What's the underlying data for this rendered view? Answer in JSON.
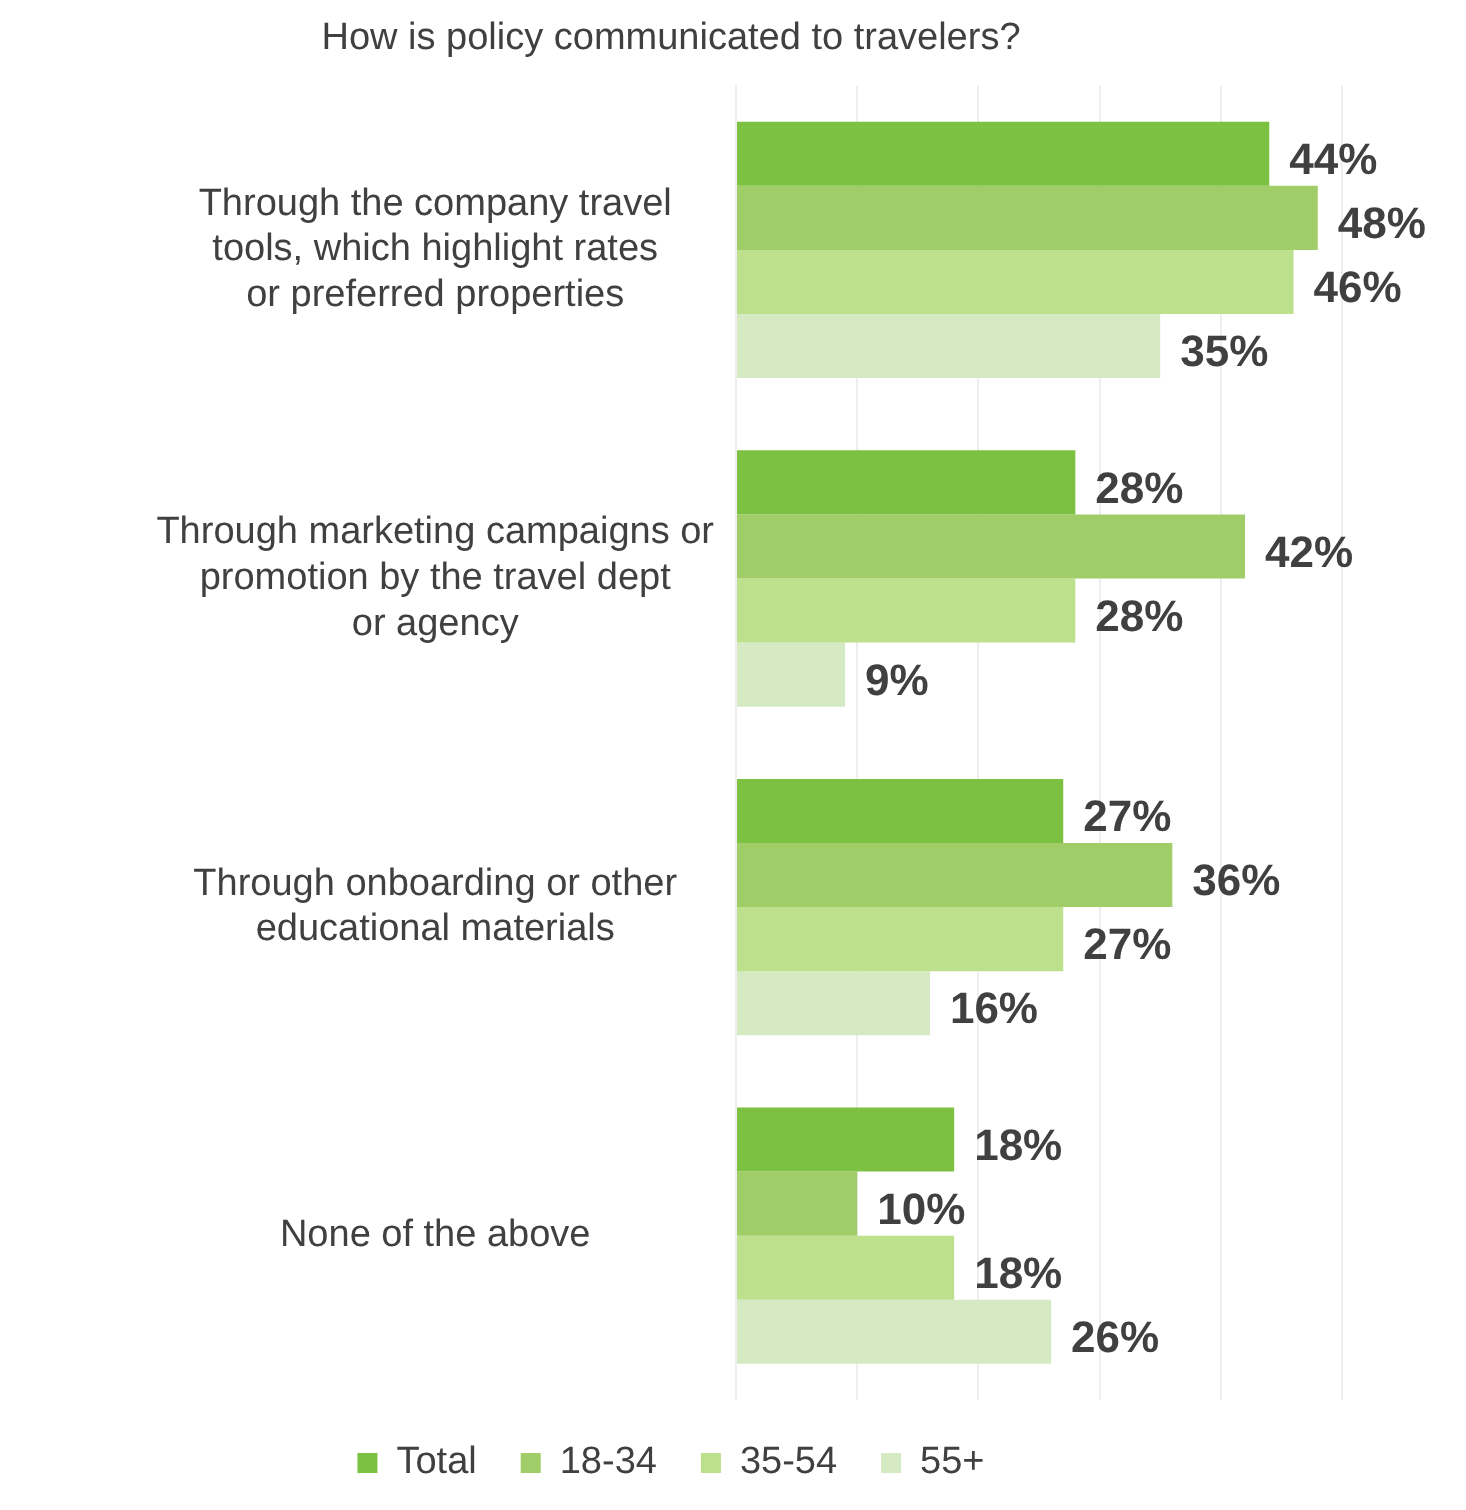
{
  "chart_data": {
    "type": "bar",
    "orientation": "horizontal",
    "title": "How is policy communicated to travelers?",
    "categories": [
      "Through the company travel tools, which highlight rates or preferred properties",
      "Through marketing campaigns or promotion by the travel dept or agency",
      "Through onboarding or other educational materials",
      "None of the above"
    ],
    "series": [
      {
        "name": "Total",
        "color": "#7cc142",
        "values": [
          44,
          28,
          27,
          18
        ],
        "value_labels": [
          "44%",
          "28%",
          "27%",
          "18%"
        ]
      },
      {
        "name": "18-34",
        "color": "#a1cd68",
        "values": [
          48,
          42,
          36,
          10
        ],
        "value_labels": [
          "48%",
          "42%",
          "36%",
          "10%"
        ]
      },
      {
        "name": "35-54",
        "color": "#bde08c",
        "values": [
          46,
          28,
          27,
          18
        ],
        "value_labels": [
          "46%",
          "28%",
          "27%",
          "18%"
        ]
      },
      {
        "name": "55+",
        "color": "#d5eac3",
        "values": [
          35,
          9,
          16,
          26
        ],
        "value_labels": [
          "35%",
          "9%",
          "16%",
          "26%"
        ]
      }
    ],
    "grid": "x",
    "legend": "bottom",
    "tick_labels": "y"
  }
}
